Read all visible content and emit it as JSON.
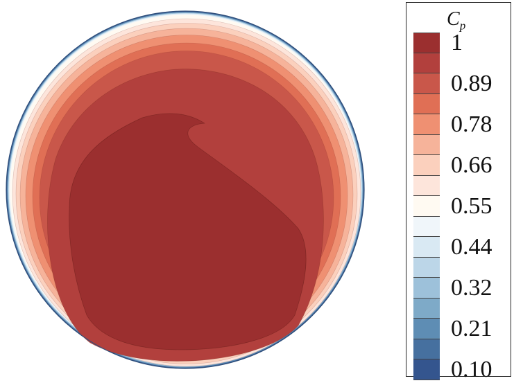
{
  "chart_data": {
    "type": "heatmap",
    "title": "",
    "legend": {
      "title_main": "C",
      "title_sub": "p",
      "placement": "right",
      "tick_labels": [
        "1",
        "0.89",
        "0.78",
        "0.66",
        "0.55",
        "0.44",
        "0.32",
        "0.21",
        "0.10"
      ],
      "tick_values": [
        1.0,
        0.89,
        0.78,
        0.66,
        0.55,
        0.44,
        0.32,
        0.21,
        0.1
      ],
      "levels": [
        1.0,
        0.945,
        0.89,
        0.835,
        0.78,
        0.72,
        0.66,
        0.605,
        0.55,
        0.495,
        0.44,
        0.38,
        0.32,
        0.265,
        0.21,
        0.155,
        0.1
      ],
      "level_colors": [
        "#9b2f2f",
        "#b2403d",
        "#c9574a",
        "#e06f55",
        "#ef9072",
        "#f6b39a",
        "#fbd0bd",
        "#fde5db",
        "#fffaf2",
        "#f0f6fa",
        "#d9e9f3",
        "#bcd6e8",
        "#9dc1da",
        "#7eaac8",
        "#5e8db4",
        "#46709f",
        "#34558e"
      ]
    }
  }
}
